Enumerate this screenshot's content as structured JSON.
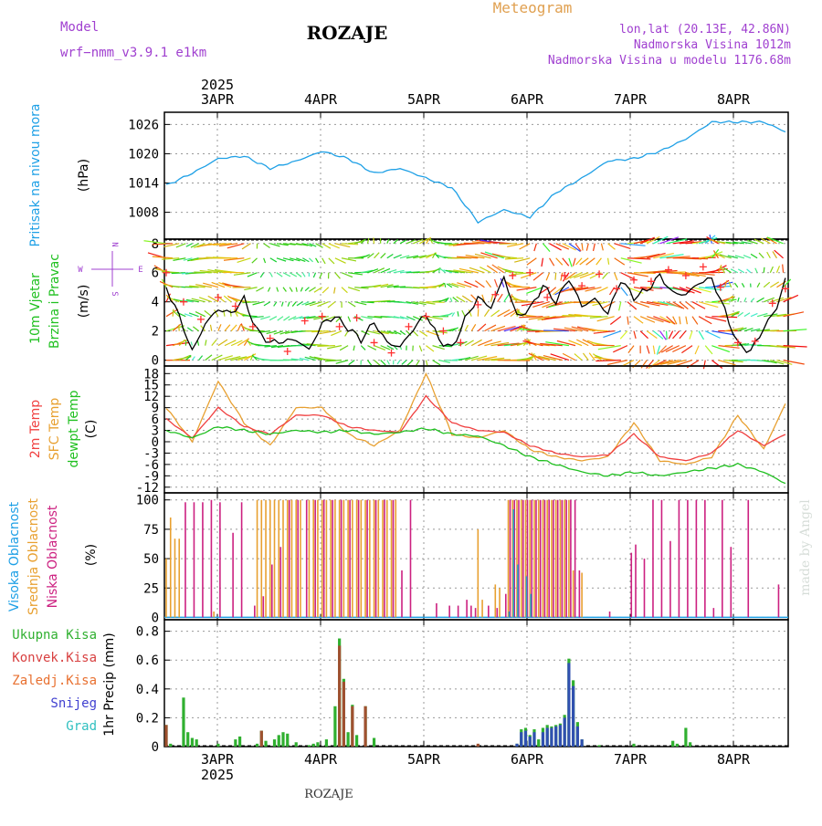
{
  "header": {
    "model_label": "Model",
    "model_name": "wrf−nmm_v3.9.1  e1km",
    "location": "ROZAJE",
    "chart_kind": "Meteogram",
    "lonlat": "lon,lat (20.13E, 42.86N)",
    "elevation": "Nadmorska Visina 1012m",
    "model_elevation": "Nadmorska Visina u modelu 1176.68m",
    "watermark": "made by Angel",
    "footer_location": "ROZAJE"
  },
  "colors": {
    "pressure": "#1ea0e6",
    "speed": "#000000",
    "gust_marker": "#ff3030",
    "t2m": "#f04040",
    "tsfc": "#e8a030",
    "dewpoint": "#20c020",
    "cloud_high": "#1ea0e6",
    "cloud_mid": "#e8a030",
    "cloud_low": "#cc2080",
    "precip_total": "#30b030",
    "precip_conv": "#d84040",
    "precip_frz": "#e87030",
    "precip_snow": "#4040d0",
    "precip_grad": "#30c0c0",
    "header_purple": "#a040d0",
    "header_orange": "#e0a050"
  },
  "time_axis": {
    "year": "2025",
    "days": [
      "3APR",
      "4APR",
      "5APR",
      "6APR",
      "7APR",
      "8APR"
    ],
    "start_hour": 0,
    "hours": 143
  },
  "chart_data": [
    {
      "type": "line",
      "name": "pressure",
      "ylabel_main": "Pritisak na nivou mora",
      "ylabel_unit": "(hPa)",
      "yticks": [
        1008,
        1014,
        1020,
        1026
      ],
      "ylim": [
        1002.5,
        1028.5
      ],
      "grid": true,
      "x_hours": [
        0,
        6,
        12,
        18,
        24,
        30,
        36,
        42,
        48,
        54,
        60,
        66,
        72,
        78,
        84,
        90,
        96,
        102,
        108,
        114,
        120,
        126,
        132,
        138,
        143
      ],
      "values": [
        1013.5,
        1016,
        1019,
        1019.5,
        1017,
        1018.5,
        1020.5,
        1019,
        1016,
        1017,
        1015,
        1013,
        1006,
        1008.5,
        1007,
        1012,
        1015,
        1018.5,
        1019,
        1020.5,
        1023,
        1026.5,
        1026.5,
        1026.5,
        1024.5
      ]
    },
    {
      "type": "line",
      "name": "wind",
      "ylabel_main_1": "10m Vjetar",
      "ylabel_main_2": "Brzina i Pravac",
      "ylabel_unit": "(m/s)",
      "compass": {
        "n": "N",
        "e": "E",
        "s": "S",
        "w": "W"
      },
      "yticks": [
        0,
        2,
        4,
        6,
        8
      ],
      "ylim": [
        -0.4,
        8.3
      ],
      "grid": true,
      "speed_hours": [
        0,
        3,
        6,
        9,
        12,
        15,
        18,
        21,
        24,
        27,
        30,
        33,
        36,
        39,
        42,
        45,
        48,
        51,
        54,
        57,
        60,
        63,
        66,
        69,
        72,
        75,
        78,
        81,
        84,
        87,
        90,
        93,
        96,
        99,
        102,
        105,
        108,
        111,
        114,
        117,
        120,
        123,
        126,
        129,
        132,
        135,
        138,
        141,
        143
      ],
      "speed": [
        5,
        3,
        0.6,
        2.5,
        3.5,
        3.2,
        4.2,
        2,
        1.2,
        1.3,
        1.4,
        0.7,
        2.5,
        3,
        2.2,
        1.4,
        2.6,
        1.2,
        0.9,
        2.1,
        3.2,
        1.4,
        0.8,
        2.8,
        4.3,
        3.6,
        5.7,
        3,
        3.5,
        5.1,
        4,
        5.6,
        3.7,
        4.2,
        3.2,
        5.5,
        4.3,
        4.8,
        5.8,
        4.6,
        4.5,
        5.3,
        5.6,
        3.4,
        1.1,
        0.6,
        2.2,
        3.6,
        5.6
      ],
      "gust_hours": [
        0,
        4,
        8,
        12,
        16,
        20,
        24,
        28,
        32,
        36,
        40,
        44,
        48,
        52,
        56,
        60,
        64,
        68,
        72,
        76,
        80,
        84,
        88,
        92,
        96,
        100,
        104,
        108,
        112,
        116,
        120,
        124,
        128,
        132,
        136,
        140,
        143
      ],
      "gust": [
        6,
        4,
        2.8,
        4.3,
        3.7,
        2.3,
        1.5,
        0.6,
        2.7,
        3,
        2.3,
        2.9,
        1.2,
        0.5,
        2.3,
        3,
        2,
        1.2,
        3.8,
        4.5,
        5.8,
        6,
        4.3,
        5.8,
        5.1,
        5.9,
        4.9,
        5.5,
        5.4,
        6.2,
        5.8,
        6.4,
        5,
        1.2,
        1.3,
        3.9,
        4.9
      ],
      "arrow_row_y": [
        0,
        1,
        2,
        3,
        4,
        5,
        6,
        7,
        8
      ]
    },
    {
      "type": "line",
      "name": "temperature",
      "ylabel_a": "2m Temp",
      "ylabel_b": "SFC Temp",
      "ylabel_c": "dewpt Temp",
      "ylabel_unit": "(C)",
      "yticks": [
        -12,
        -9,
        -6,
        -3,
        0,
        3,
        6,
        9,
        12,
        15,
        18
      ],
      "ylim": [
        -13.5,
        20
      ],
      "grid": true,
      "x_hours": [
        0,
        6,
        12,
        18,
        24,
        30,
        36,
        42,
        48,
        54,
        60,
        66,
        72,
        78,
        84,
        90,
        96,
        102,
        108,
        114,
        120,
        126,
        132,
        138,
        143
      ],
      "t2m": [
        6,
        1,
        9,
        4,
        2,
        7,
        7,
        4,
        3,
        2.5,
        12,
        5,
        3,
        2.5,
        -1,
        -3,
        -4,
        -3.5,
        2,
        -4,
        -5,
        -3,
        3,
        -1,
        2
      ],
      "tsfc": [
        9,
        0,
        16,
        5,
        -1,
        9,
        9,
        2,
        -1,
        3,
        18,
        2,
        1,
        3,
        -2,
        -4,
        -5,
        -4,
        5,
        -5,
        -6,
        -4,
        7,
        -2,
        10
      ],
      "dewpt": [
        3,
        1,
        4,
        3,
        2,
        3,
        2.5,
        3,
        2,
        2.5,
        3.5,
        2,
        1.5,
        -1,
        -4,
        -6,
        -8,
        -9,
        -8,
        -9,
        -8,
        -7,
        -6,
        -8,
        -11
      ]
    },
    {
      "type": "bar",
      "name": "cloud",
      "ylabel_a": "Visoka Oblacnost",
      "ylabel_b": "Srednja Oblacnost",
      "ylabel_c": "Niska Oblacnost",
      "ylabel_unit": "(%)",
      "yticks": [
        0,
        25,
        50,
        75,
        100
      ],
      "ylim": [
        -2,
        106
      ],
      "grid": true,
      "high": [
        [
          79,
          5
        ],
        [
          80,
          92
        ],
        [
          81,
          45
        ],
        [
          83,
          35
        ],
        [
          84,
          20
        ]
      ],
      "mid": [
        [
          0,
          50
        ],
        [
          1,
          85
        ],
        [
          2,
          67
        ],
        [
          3,
          67
        ],
        [
          11,
          5
        ],
        [
          21,
          100
        ],
        [
          22,
          100
        ],
        [
          23,
          100
        ],
        [
          24,
          100
        ],
        [
          25,
          100
        ],
        [
          26,
          100
        ],
        [
          27,
          100
        ],
        [
          28,
          100
        ],
        [
          29,
          100
        ],
        [
          30,
          100
        ],
        [
          31,
          100
        ],
        [
          33,
          100
        ],
        [
          34,
          100
        ],
        [
          35,
          100
        ],
        [
          36,
          100
        ],
        [
          37,
          100
        ],
        [
          38,
          100
        ],
        [
          39,
          100
        ],
        [
          40,
          100
        ],
        [
          41,
          100
        ],
        [
          42,
          100
        ],
        [
          43,
          100
        ],
        [
          44,
          100
        ],
        [
          45,
          100
        ],
        [
          46,
          100
        ],
        [
          47,
          100
        ],
        [
          48,
          100
        ],
        [
          49,
          100
        ],
        [
          50,
          100
        ],
        [
          51,
          100
        ],
        [
          52,
          100
        ],
        [
          53,
          100
        ],
        [
          72,
          75
        ],
        [
          73,
          15
        ],
        [
          76,
          28
        ],
        [
          77,
          25
        ],
        [
          79,
          100
        ],
        [
          80,
          100
        ],
        [
          81,
          100
        ],
        [
          82,
          100
        ],
        [
          83,
          100
        ],
        [
          84,
          100
        ],
        [
          85,
          100
        ],
        [
          86,
          100
        ],
        [
          87,
          100
        ],
        [
          88,
          100
        ],
        [
          89,
          100
        ],
        [
          90,
          100
        ],
        [
          91,
          100
        ],
        [
          92,
          100
        ],
        [
          93,
          100
        ],
        [
          94,
          40
        ],
        [
          96,
          38
        ]
      ],
      "low": [
        [
          4,
          98
        ],
        [
          6,
          98
        ],
        [
          8,
          98
        ],
        [
          10,
          100
        ],
        [
          12,
          98
        ],
        [
          15,
          72
        ],
        [
          17,
          98
        ],
        [
          20,
          10
        ],
        [
          22,
          18
        ],
        [
          24,
          45
        ],
        [
          26,
          60
        ],
        [
          28,
          100
        ],
        [
          30,
          100
        ],
        [
          32,
          100
        ],
        [
          34,
          100
        ],
        [
          36,
          100
        ],
        [
          38,
          100
        ],
        [
          40,
          100
        ],
        [
          42,
          100
        ],
        [
          44,
          100
        ],
        [
          46,
          100
        ],
        [
          48,
          100
        ],
        [
          50,
          100
        ],
        [
          52,
          100
        ],
        [
          54,
          40
        ],
        [
          56,
          100
        ],
        [
          62,
          12
        ],
        [
          65,
          10
        ],
        [
          67,
          10
        ],
        [
          69,
          15
        ],
        [
          70,
          10
        ],
        [
          71,
          8
        ],
        [
          74,
          10
        ],
        [
          76,
          8
        ],
        [
          78,
          20
        ],
        [
          79,
          100
        ],
        [
          80,
          100
        ],
        [
          81,
          100
        ],
        [
          82,
          100
        ],
        [
          83,
          100
        ],
        [
          84,
          100
        ],
        [
          85,
          100
        ],
        [
          86,
          100
        ],
        [
          87,
          100
        ],
        [
          88,
          100
        ],
        [
          89,
          100
        ],
        [
          90,
          100
        ],
        [
          91,
          100
        ],
        [
          92,
          100
        ],
        [
          93,
          100
        ],
        [
          94,
          100
        ],
        [
          95,
          40
        ],
        [
          102,
          5
        ],
        [
          107,
          55
        ],
        [
          108,
          62
        ],
        [
          110,
          50
        ],
        [
          112,
          100
        ],
        [
          114,
          100
        ],
        [
          116,
          65
        ],
        [
          118,
          100
        ],
        [
          120,
          100
        ],
        [
          122,
          100
        ],
        [
          124,
          100
        ],
        [
          126,
          8
        ],
        [
          128,
          100
        ],
        [
          130,
          60
        ],
        [
          134,
          100
        ],
        [
          141,
          28
        ]
      ]
    },
    {
      "type": "bar",
      "name": "precipitation",
      "ylabel_unit": "1hr Precip (mm)",
      "legend": [
        "Ukupna Kisa",
        "Konvek.Kisa",
        "Zaledj.Kisa",
        "Snijeg",
        "Grad"
      ],
      "yticks": [
        0,
        0.2,
        0.4,
        0.6,
        0.8
      ],
      "yticklabels": [
        "0",
        "0.2",
        "0.4",
        "0.6",
        "0.8"
      ],
      "ylim": [
        0,
        0.88
      ],
      "grid": true,
      "total": [
        [
          0,
          0.15
        ],
        [
          1,
          0.02
        ],
        [
          4,
          0.34
        ],
        [
          5,
          0.1
        ],
        [
          6,
          0.06
        ],
        [
          7,
          0.05
        ],
        [
          12,
          0.02
        ],
        [
          16,
          0.05
        ],
        [
          17,
          0.07
        ],
        [
          21,
          0.02
        ],
        [
          22,
          0.11
        ],
        [
          23,
          0.04
        ],
        [
          25,
          0.05
        ],
        [
          26,
          0.08
        ],
        [
          27,
          0.1
        ],
        [
          28,
          0.09
        ],
        [
          30,
          0.03
        ],
        [
          33,
          0.01
        ],
        [
          34,
          0.02
        ],
        [
          35,
          0.03
        ],
        [
          37,
          0.05
        ],
        [
          39,
          0.28
        ],
        [
          40,
          0.75
        ],
        [
          41,
          0.47
        ],
        [
          42,
          0.1
        ],
        [
          43,
          0.29
        ],
        [
          44,
          0.08
        ],
        [
          46,
          0.28
        ],
        [
          48,
          0.06
        ],
        [
          81,
          0.02
        ],
        [
          82,
          0.12
        ],
        [
          83,
          0.13
        ],
        [
          84,
          0.08
        ],
        [
          85,
          0.12
        ],
        [
          86,
          0.05
        ],
        [
          87,
          0.13
        ],
        [
          88,
          0.15
        ],
        [
          89,
          0.14
        ],
        [
          90,
          0.15
        ],
        [
          91,
          0.16
        ],
        [
          92,
          0.22
        ],
        [
          93,
          0.61
        ],
        [
          94,
          0.46
        ],
        [
          95,
          0.17
        ],
        [
          96,
          0.05
        ],
        [
          100,
          0.01
        ],
        [
          108,
          0.02
        ],
        [
          117,
          0.04
        ],
        [
          118,
          0.02
        ],
        [
          120,
          0.13
        ],
        [
          121,
          0.03
        ]
      ],
      "conv": [
        [
          0,
          0.15
        ],
        [
          22,
          0.11
        ],
        [
          40,
          0.7
        ],
        [
          41,
          0.45
        ],
        [
          43,
          0.28
        ],
        [
          46,
          0.28
        ],
        [
          72,
          0.02
        ]
      ],
      "snow": [
        [
          81,
          0.02
        ],
        [
          82,
          0.1
        ],
        [
          83,
          0.11
        ],
        [
          84,
          0.07
        ],
        [
          85,
          0.1
        ],
        [
          87,
          0.1
        ],
        [
          88,
          0.13
        ],
        [
          89,
          0.13
        ],
        [
          90,
          0.14
        ],
        [
          91,
          0.15
        ],
        [
          92,
          0.2
        ],
        [
          93,
          0.58
        ],
        [
          94,
          0.42
        ],
        [
          95,
          0.14
        ],
        [
          96,
          0.05
        ]
      ]
    }
  ]
}
